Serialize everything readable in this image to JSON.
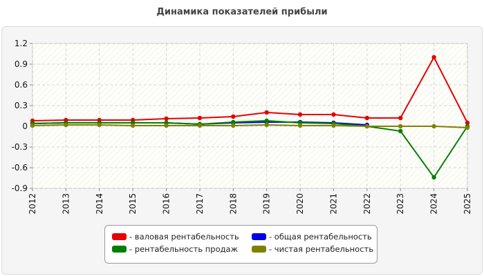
{
  "chart_data": {
    "type": "line",
    "title": "Динамика показателей прибыли",
    "x": [
      "2012",
      "2013",
      "2014",
      "2015",
      "2016",
      "2017",
      "2018",
      "2019",
      "2020",
      "2021",
      "2022",
      "2023",
      "2024",
      "2025"
    ],
    "ylim": [
      -0.9,
      1.2
    ],
    "yticks": [
      "1.2",
      "0.9",
      "0.6",
      "0.3",
      "0",
      "-0.3",
      "-0.6",
      "-0.9"
    ],
    "grid": true,
    "legend_position": "bottom",
    "series": [
      {
        "name": "- валовая рентабельность",
        "color": "#e60000",
        "values": [
          0.08,
          0.09,
          0.09,
          0.09,
          0.11,
          0.12,
          0.14,
          0.2,
          0.17,
          0.17,
          0.12,
          0.12,
          1.0,
          0.05
        ]
      },
      {
        "name": "- общая рентабельность",
        "color": "#0000e6",
        "values": [
          0.04,
          0.05,
          0.05,
          0.05,
          0.05,
          0.03,
          0.05,
          0.06,
          0.06,
          0.05,
          0.02,
          null,
          null,
          null
        ]
      },
      {
        "name": "- рентабельность продаж",
        "color": "#008000",
        "values": [
          0.04,
          0.05,
          0.05,
          0.05,
          0.05,
          0.03,
          0.06,
          0.08,
          0.05,
          0.04,
          0.0,
          -0.07,
          -0.74,
          0.0
        ]
      },
      {
        "name": "- чистая рентабельность",
        "color": "#808000",
        "values": [
          0.01,
          0.02,
          0.02,
          0.01,
          0.01,
          0.01,
          0.01,
          0.02,
          0.01,
          0.01,
          0.0,
          0.0,
          0.0,
          -0.02
        ]
      }
    ]
  }
}
